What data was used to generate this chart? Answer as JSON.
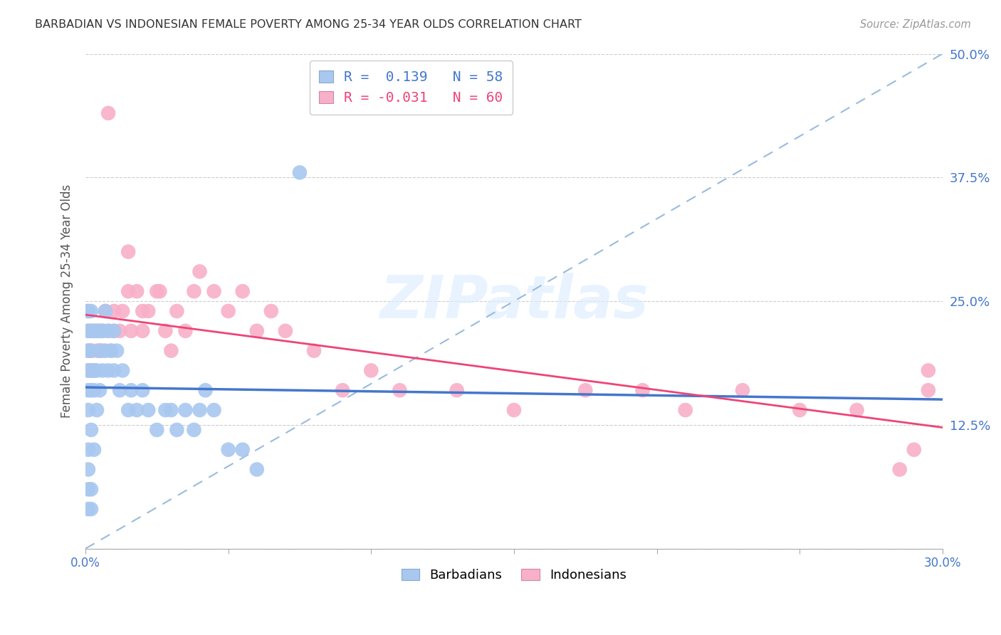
{
  "title": "BARBADIAN VS INDONESIAN FEMALE POVERTY AMONG 25-34 YEAR OLDS CORRELATION CHART",
  "source": "Source: ZipAtlas.com",
  "ylabel": "Female Poverty Among 25-34 Year Olds",
  "xlim": [
    0.0,
    0.3
  ],
  "ylim": [
    0.0,
    0.5
  ],
  "ytick_vals": [
    0.0,
    0.125,
    0.25,
    0.375,
    0.5
  ],
  "ytick_labels": [
    "",
    "12.5%",
    "25.0%",
    "37.5%",
    "50.0%"
  ],
  "xtick_positions": [
    0.0,
    0.05,
    0.1,
    0.15,
    0.2,
    0.25,
    0.3
  ],
  "xtick_labels": [
    "0.0%",
    "",
    "",
    "",
    "",
    "",
    "30.0%"
  ],
  "legend_r_blue": "R =  0.139",
  "legend_n_blue": "N = 58",
  "legend_r_pink": "R = -0.031",
  "legend_n_pink": "N = 60",
  "barbadian_color": "#a8c8f0",
  "indonesian_color": "#f8b0c8",
  "trendline_blue_color": "#4477cc",
  "trendline_pink_color": "#ee4477",
  "reference_line_color": "#99bbdd",
  "watermark": "ZIPatlas",
  "watermark_color": "#ddeeff",
  "barb_x": [
    0.001,
    0.001,
    0.001,
    0.001,
    0.001,
    0.001,
    0.001,
    0.001,
    0.001,
    0.001,
    0.002,
    0.002,
    0.002,
    0.002,
    0.002,
    0.002,
    0.002,
    0.002,
    0.003,
    0.003,
    0.003,
    0.003,
    0.004,
    0.004,
    0.004,
    0.005,
    0.005,
    0.005,
    0.006,
    0.006,
    0.007,
    0.007,
    0.008,
    0.008,
    0.009,
    0.01,
    0.01,
    0.011,
    0.012,
    0.013,
    0.015,
    0.016,
    0.018,
    0.02,
    0.022,
    0.025,
    0.028,
    0.03,
    0.032,
    0.035,
    0.038,
    0.04,
    0.042,
    0.045,
    0.05,
    0.055,
    0.06,
    0.075
  ],
  "barb_y": [
    0.04,
    0.06,
    0.08,
    0.1,
    0.14,
    0.16,
    0.18,
    0.2,
    0.22,
    0.24,
    0.04,
    0.06,
    0.12,
    0.16,
    0.18,
    0.2,
    0.22,
    0.24,
    0.1,
    0.16,
    0.18,
    0.22,
    0.14,
    0.18,
    0.22,
    0.16,
    0.2,
    0.22,
    0.18,
    0.22,
    0.2,
    0.24,
    0.18,
    0.22,
    0.2,
    0.18,
    0.22,
    0.2,
    0.16,
    0.18,
    0.14,
    0.16,
    0.14,
    0.16,
    0.14,
    0.12,
    0.14,
    0.14,
    0.12,
    0.14,
    0.12,
    0.14,
    0.16,
    0.14,
    0.1,
    0.1,
    0.08,
    0.38
  ],
  "indo_x": [
    0.001,
    0.001,
    0.001,
    0.001,
    0.002,
    0.002,
    0.002,
    0.003,
    0.003,
    0.004,
    0.004,
    0.005,
    0.005,
    0.006,
    0.006,
    0.007,
    0.008,
    0.009,
    0.01,
    0.01,
    0.012,
    0.013,
    0.015,
    0.015,
    0.016,
    0.018,
    0.02,
    0.02,
    0.022,
    0.025,
    0.026,
    0.028,
    0.03,
    0.032,
    0.035,
    0.038,
    0.04,
    0.045,
    0.05,
    0.055,
    0.06,
    0.065,
    0.07,
    0.08,
    0.09,
    0.1,
    0.11,
    0.13,
    0.15,
    0.175,
    0.195,
    0.21,
    0.23,
    0.25,
    0.27,
    0.285,
    0.29,
    0.295,
    0.295,
    0.008
  ],
  "indo_y": [
    0.18,
    0.2,
    0.22,
    0.24,
    0.18,
    0.2,
    0.22,
    0.18,
    0.22,
    0.2,
    0.22,
    0.2,
    0.22,
    0.2,
    0.22,
    0.24,
    0.22,
    0.2,
    0.22,
    0.24,
    0.22,
    0.24,
    0.26,
    0.3,
    0.22,
    0.26,
    0.22,
    0.24,
    0.24,
    0.26,
    0.26,
    0.22,
    0.2,
    0.24,
    0.22,
    0.26,
    0.28,
    0.26,
    0.24,
    0.26,
    0.22,
    0.24,
    0.22,
    0.2,
    0.16,
    0.18,
    0.16,
    0.16,
    0.14,
    0.16,
    0.16,
    0.14,
    0.16,
    0.14,
    0.14,
    0.08,
    0.1,
    0.18,
    0.16,
    0.44
  ]
}
